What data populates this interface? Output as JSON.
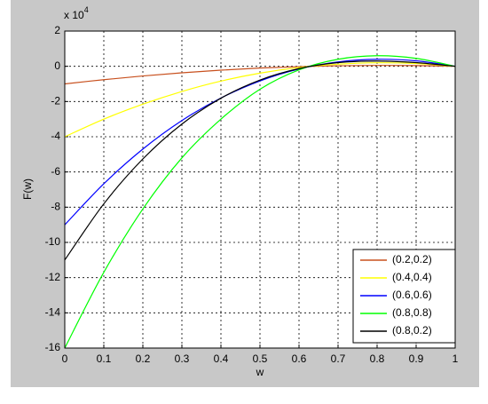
{
  "chart_data": {
    "type": "line",
    "xlabel": "w",
    "ylabel": "F(w)",
    "y_exponent_label": {
      "base": "x 10",
      "exponent": "4"
    },
    "x": [
      0,
      0.1,
      0.2,
      0.3,
      0.4,
      0.5,
      0.6,
      0.7,
      0.8,
      0.9,
      1
    ],
    "series": [
      {
        "name": "(0.2,0.2)",
        "color": "#c8501e",
        "values": [
          -1,
          -0.76,
          -0.55,
          -0.37,
          -0.22,
          -0.1,
          -0.02,
          0.03,
          0.05,
          0.04,
          0
        ]
      },
      {
        "name": "(0.4,0.4)",
        "color": "#ffff00",
        "values": [
          -4,
          -3.0,
          -2.15,
          -1.43,
          -0.84,
          -0.39,
          -0.07,
          0.12,
          0.2,
          0.16,
          0
        ]
      },
      {
        "name": "(0.6,0.6)",
        "color": "#0000ff",
        "values": [
          -9,
          -6.67,
          -4.7,
          -3.08,
          -1.8,
          -0.83,
          -0.15,
          0.25,
          0.4,
          0.31,
          0
        ]
      },
      {
        "name": "(0.8,0.8)",
        "color": "#00ff00",
        "values": [
          -16,
          -11.7,
          -8.1,
          -5.2,
          -3.0,
          -1.3,
          -0.2,
          0.4,
          0.6,
          0.45,
          0
        ]
      },
      {
        "name": "(0.8,0.2)",
        "color": "#000000",
        "values": [
          -11,
          -7.81,
          -5.26,
          -3.28,
          -1.81,
          -0.78,
          -0.13,
          0.21,
          0.3,
          0.21,
          0
        ]
      }
    ],
    "xlim": [
      0,
      1
    ],
    "xticks": [
      0,
      0.1,
      0.2,
      0.3,
      0.4,
      0.5,
      0.6,
      0.7,
      0.8,
      0.9,
      1
    ],
    "ylim": [
      -16,
      2
    ],
    "yticks": [
      2,
      0,
      -2,
      -4,
      -6,
      -8,
      -10,
      -12,
      -14,
      -16
    ],
    "grid": true,
    "legend": "southeast"
  }
}
